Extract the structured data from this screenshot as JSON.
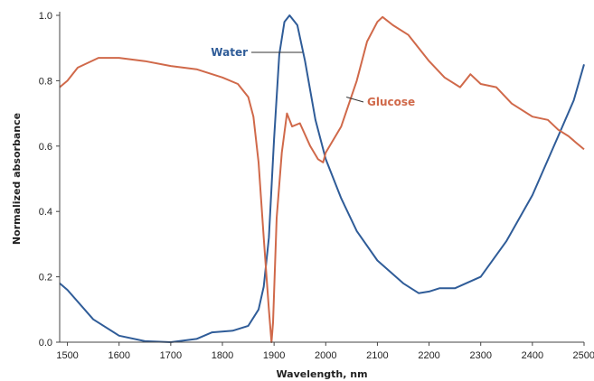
{
  "chart_data": {
    "type": "line",
    "title": "",
    "xlabel": "Wavelength, nm",
    "ylabel": "Normalized absorbance",
    "xlim": [
      1485,
      2500
    ],
    "ylim": [
      0,
      1.0
    ],
    "x_ticks": [
      1500,
      1600,
      1700,
      1800,
      1900,
      2000,
      2100,
      2200,
      2300,
      2400,
      2500
    ],
    "y_ticks": [
      0.0,
      0.2,
      0.4,
      0.6,
      0.8,
      1.0
    ],
    "grid": false,
    "series": [
      {
        "name": "Water",
        "color": "#2f5c98",
        "label_anchor": [
          1955,
          0.965
        ],
        "points": [
          [
            1485,
            0.18
          ],
          [
            1500,
            0.16
          ],
          [
            1550,
            0.07
          ],
          [
            1600,
            0.02
          ],
          [
            1650,
            0.003
          ],
          [
            1700,
            0.0
          ],
          [
            1750,
            0.01
          ],
          [
            1780,
            0.03
          ],
          [
            1820,
            0.035
          ],
          [
            1850,
            0.05
          ],
          [
            1870,
            0.1
          ],
          [
            1880,
            0.17
          ],
          [
            1890,
            0.32
          ],
          [
            1900,
            0.62
          ],
          [
            1910,
            0.88
          ],
          [
            1920,
            0.98
          ],
          [
            1930,
            1.0
          ],
          [
            1945,
            0.97
          ],
          [
            1960,
            0.86
          ],
          [
            1980,
            0.68
          ],
          [
            2000,
            0.56
          ],
          [
            2030,
            0.44
          ],
          [
            2060,
            0.34
          ],
          [
            2100,
            0.25
          ],
          [
            2150,
            0.18
          ],
          [
            2180,
            0.15
          ],
          [
            2200,
            0.155
          ],
          [
            2220,
            0.165
          ],
          [
            2250,
            0.165
          ],
          [
            2300,
            0.2
          ],
          [
            2350,
            0.31
          ],
          [
            2400,
            0.45
          ],
          [
            2450,
            0.63
          ],
          [
            2480,
            0.74
          ],
          [
            2500,
            0.85
          ]
        ]
      },
      {
        "name": "Glucose",
        "color": "#d0694a",
        "label_anchor": [
          2050,
          0.72
        ],
        "points": [
          [
            1485,
            0.78
          ],
          [
            1500,
            0.8
          ],
          [
            1520,
            0.84
          ],
          [
            1560,
            0.87
          ],
          [
            1600,
            0.87
          ],
          [
            1650,
            0.86
          ],
          [
            1700,
            0.845
          ],
          [
            1750,
            0.835
          ],
          [
            1800,
            0.81
          ],
          [
            1830,
            0.79
          ],
          [
            1850,
            0.75
          ],
          [
            1860,
            0.69
          ],
          [
            1870,
            0.55
          ],
          [
            1880,
            0.32
          ],
          [
            1890,
            0.1
          ],
          [
            1895,
            0.0
          ],
          [
            1898,
            0.06
          ],
          [
            1905,
            0.38
          ],
          [
            1915,
            0.58
          ],
          [
            1925,
            0.7
          ],
          [
            1935,
            0.66
          ],
          [
            1950,
            0.67
          ],
          [
            1970,
            0.6
          ],
          [
            1985,
            0.56
          ],
          [
            1995,
            0.55
          ],
          [
            2000,
            0.58
          ],
          [
            2030,
            0.66
          ],
          [
            2060,
            0.8
          ],
          [
            2080,
            0.92
          ],
          [
            2100,
            0.98
          ],
          [
            2110,
            0.995
          ],
          [
            2130,
            0.97
          ],
          [
            2160,
            0.94
          ],
          [
            2200,
            0.86
          ],
          [
            2230,
            0.81
          ],
          [
            2260,
            0.78
          ],
          [
            2280,
            0.82
          ],
          [
            2300,
            0.79
          ],
          [
            2330,
            0.78
          ],
          [
            2360,
            0.73
          ],
          [
            2400,
            0.69
          ],
          [
            2430,
            0.68
          ],
          [
            2450,
            0.65
          ],
          [
            2470,
            0.63
          ],
          [
            2485,
            0.61
          ],
          [
            2500,
            0.59
          ]
        ]
      }
    ]
  }
}
